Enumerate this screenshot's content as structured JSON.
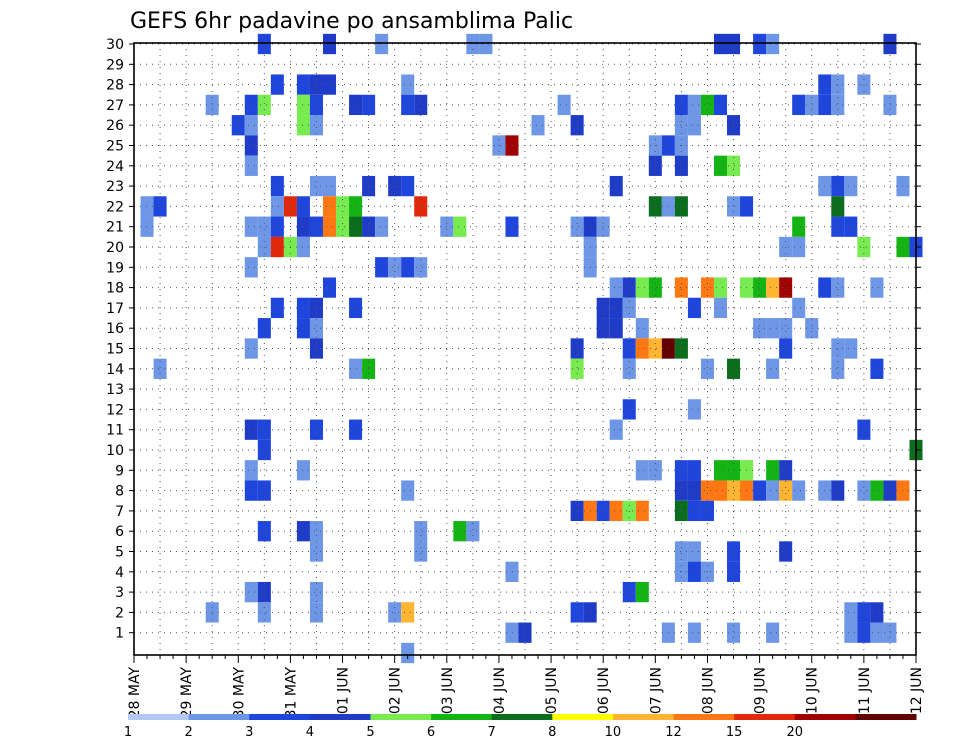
{
  "chart_data": {
    "type": "heatmap",
    "title": "GEFS 6hr padavine po ansamblima Palic",
    "xlabel": "",
    "ylabel": "",
    "y_ticks": [
      "1",
      "2",
      "3",
      "4",
      "5",
      "6",
      "7",
      "8",
      "9",
      "10",
      "11",
      "12",
      "13",
      "14",
      "15",
      "16",
      "17",
      "18",
      "19",
      "20",
      "21",
      "22",
      "23",
      "24",
      "25",
      "26",
      "27",
      "28",
      "29",
      "30"
    ],
    "ylim": [
      1,
      30
    ],
    "x_ticks": [
      "28 MAY",
      "29 MAY",
      "30 MAY",
      "31 MAY",
      "01 JUN",
      "02 JUN",
      "03 JUN",
      "04 JUN",
      "05 JUN",
      "06 JUN",
      "07 JUN",
      "08 JUN",
      "09 JUN",
      "10 JUN",
      "11 JUN",
      "12 JUN"
    ],
    "x_time_steps": 60,
    "steps_per_day": 4,
    "grid": true,
    "legend": {
      "placement": "bottom",
      "labels": [
        "1",
        "2",
        "3",
        "4",
        "5",
        "6",
        "7",
        "8",
        "10",
        "12",
        "15",
        "20"
      ],
      "colors": [
        "#b4c8f5",
        "#6e96e6",
        "#1e46dc",
        "#1e3cc8",
        "#78eb50",
        "#14b414",
        "#0a6e1e",
        "#ffff00",
        "#ffb432",
        "#ff7814",
        "#e1280a",
        "#a00000",
        "#640000"
      ]
    },
    "cells_note_units": "values in mm per 6h",
    "cells": [
      [
        30,
        10,
        2.4
      ],
      [
        30,
        15,
        3.4
      ],
      [
        30,
        19,
        1.6
      ],
      [
        30,
        26,
        1.2
      ],
      [
        30,
        27,
        1.2
      ],
      [
        30,
        45,
        3.3
      ],
      [
        30,
        46,
        3.3
      ],
      [
        30,
        48,
        2.2
      ],
      [
        30,
        49,
        1.4
      ],
      [
        30,
        58,
        3.4
      ],
      [
        28,
        11,
        2.5
      ],
      [
        28,
        13,
        2.3
      ],
      [
        28,
        14,
        3.3
      ],
      [
        28,
        15,
        3.3
      ],
      [
        28,
        21,
        1.4
      ],
      [
        28,
        53,
        2.3
      ],
      [
        28,
        54,
        1.5
      ],
      [
        28,
        56,
        1.4
      ],
      [
        27,
        6,
        1.2
      ],
      [
        27,
        9,
        2.3
      ],
      [
        27,
        10,
        4.5
      ],
      [
        27,
        13,
        4.8
      ],
      [
        27,
        14,
        2.4
      ],
      [
        27,
        17,
        3.4
      ],
      [
        27,
        18,
        2.3
      ],
      [
        27,
        21,
        2.4
      ],
      [
        27,
        22,
        3.3
      ],
      [
        27,
        33,
        1.3
      ],
      [
        27,
        42,
        2.3
      ],
      [
        27,
        43,
        1.4
      ],
      [
        27,
        44,
        5.4
      ],
      [
        27,
        45,
        2.4
      ],
      [
        27,
        51,
        2.3
      ],
      [
        27,
        52,
        1.4
      ],
      [
        27,
        53,
        2.3
      ],
      [
        27,
        54,
        1.6
      ],
      [
        27,
        58,
        1.3
      ],
      [
        26,
        8,
        2.4
      ],
      [
        26,
        9,
        1.4
      ],
      [
        26,
        13,
        4.6
      ],
      [
        26,
        14,
        1.6
      ],
      [
        26,
        31,
        1.3
      ],
      [
        26,
        34,
        3.3
      ],
      [
        26,
        42,
        1.4
      ],
      [
        26,
        43,
        1.4
      ],
      [
        26,
        46,
        3.4
      ],
      [
        25,
        9,
        3.4
      ],
      [
        25,
        28,
        1.5
      ],
      [
        25,
        29,
        15.5
      ],
      [
        25,
        40,
        1.4
      ],
      [
        25,
        41,
        2.4
      ],
      [
        25,
        42,
        1.3
      ],
      [
        24,
        9,
        1.4
      ],
      [
        24,
        40,
        3.3
      ],
      [
        24,
        42,
        3.3
      ],
      [
        24,
        45,
        5.6
      ],
      [
        24,
        46,
        4.8
      ],
      [
        23,
        11,
        2.3
      ],
      [
        23,
        14,
        1.4
      ],
      [
        23,
        15,
        1.4
      ],
      [
        23,
        18,
        3.3
      ],
      [
        23,
        20,
        3.4
      ],
      [
        23,
        21,
        2.4
      ],
      [
        23,
        37,
        3.4
      ],
      [
        23,
        53,
        1.4
      ],
      [
        23,
        54,
        2.4
      ],
      [
        23,
        55,
        1.3
      ],
      [
        23,
        59,
        1.3
      ],
      [
        22,
        1,
        1.4
      ],
      [
        22,
        2,
        2.3
      ],
      [
        22,
        11,
        1.3
      ],
      [
        22,
        12,
        12.5
      ],
      [
        22,
        13,
        2.4
      ],
      [
        22,
        15,
        10.5
      ],
      [
        22,
        16,
        4.7
      ],
      [
        22,
        17,
        5.3
      ],
      [
        22,
        22,
        12.3
      ],
      [
        22,
        40,
        6.5
      ],
      [
        22,
        41,
        1.5
      ],
      [
        22,
        42,
        6.5
      ],
      [
        22,
        46,
        1.4
      ],
      [
        22,
        47,
        2.4
      ],
      [
        22,
        54,
        6.5
      ],
      [
        21,
        1,
        1.4
      ],
      [
        21,
        9,
        1.4
      ],
      [
        21,
        10,
        1.4
      ],
      [
        21,
        11,
        2.4
      ],
      [
        21,
        13,
        3.3
      ],
      [
        21,
        14,
        2.4
      ],
      [
        21,
        15,
        10.6
      ],
      [
        21,
        16,
        4.8
      ],
      [
        21,
        17,
        6.2
      ],
      [
        21,
        18,
        3.4
      ],
      [
        21,
        19,
        1.4
      ],
      [
        21,
        24,
        1.4
      ],
      [
        21,
        25,
        4.6
      ],
      [
        21,
        29,
        2.3
      ],
      [
        21,
        34,
        1.3
      ],
      [
        21,
        35,
        3.4
      ],
      [
        21,
        36,
        1.4
      ],
      [
        21,
        51,
        5.3
      ],
      [
        21,
        54,
        2.3
      ],
      [
        21,
        55,
        2.4
      ],
      [
        20,
        10,
        1.4
      ],
      [
        20,
        11,
        12.5
      ],
      [
        20,
        12,
        4.6
      ],
      [
        20,
        13,
        1.4
      ],
      [
        20,
        35,
        1.4
      ],
      [
        20,
        50,
        1.4
      ],
      [
        20,
        51,
        1.4
      ],
      [
        20,
        56,
        4.8
      ],
      [
        20,
        59,
        5.6
      ],
      [
        20,
        60,
        2.4
      ],
      [
        19,
        9,
        1.4
      ],
      [
        19,
        19,
        2.3
      ],
      [
        19,
        20,
        1.4
      ],
      [
        19,
        21,
        2.4
      ],
      [
        19,
        22,
        1.4
      ],
      [
        19,
        35,
        1.3
      ],
      [
        18,
        15,
        2.4
      ],
      [
        18,
        37,
        1.4
      ],
      [
        18,
        38,
        3.4
      ],
      [
        18,
        39,
        4.6
      ],
      [
        18,
        40,
        5.6
      ],
      [
        18,
        42,
        10.5
      ],
      [
        18,
        44,
        10.5
      ],
      [
        18,
        45,
        4.8
      ],
      [
        18,
        47,
        4.6
      ],
      [
        18,
        48,
        5.6
      ],
      [
        18,
        49,
        8.5
      ],
      [
        18,
        50,
        17.5
      ],
      [
        18,
        53,
        2.4
      ],
      [
        18,
        54,
        1.4
      ],
      [
        18,
        57,
        1.4
      ],
      [
        17,
        11,
        2.4
      ],
      [
        17,
        13,
        2.4
      ],
      [
        17,
        14,
        3.4
      ],
      [
        17,
        17,
        2.4
      ],
      [
        17,
        36,
        3.4
      ],
      [
        17,
        37,
        3.4
      ],
      [
        17,
        38,
        1.4
      ],
      [
        17,
        43,
        2.4
      ],
      [
        17,
        45,
        1.4
      ],
      [
        17,
        51,
        1.4
      ],
      [
        16,
        10,
        2.4
      ],
      [
        16,
        13,
        2.4
      ],
      [
        16,
        14,
        1.4
      ],
      [
        16,
        36,
        3.3
      ],
      [
        16,
        37,
        3.4
      ],
      [
        16,
        39,
        1.4
      ],
      [
        16,
        48,
        1.4
      ],
      [
        16,
        49,
        1.4
      ],
      [
        16,
        50,
        1.4
      ],
      [
        16,
        52,
        1.5
      ],
      [
        15,
        9,
        1.4
      ],
      [
        15,
        14,
        3.4
      ],
      [
        15,
        34,
        3.4
      ],
      [
        15,
        38,
        2.3
      ],
      [
        15,
        39,
        10.5
      ],
      [
        15,
        40,
        8.4
      ],
      [
        15,
        41,
        25
      ],
      [
        15,
        42,
        6.5
      ],
      [
        15,
        50,
        2.4
      ],
      [
        15,
        54,
        1.4
      ],
      [
        15,
        55,
        1.4
      ],
      [
        14,
        2,
        1.3
      ],
      [
        14,
        17,
        1.4
      ],
      [
        14,
        18,
        5.5
      ],
      [
        14,
        34,
        4.6
      ],
      [
        14,
        38,
        1.4
      ],
      [
        14,
        44,
        1.4
      ],
      [
        14,
        46,
        6.5
      ],
      [
        14,
        49,
        1.4
      ],
      [
        14,
        54,
        1.4
      ],
      [
        14,
        57,
        2.4
      ],
      [
        12,
        38,
        2.4
      ],
      [
        12,
        43,
        1.4
      ],
      [
        11,
        9,
        3.4
      ],
      [
        11,
        10,
        2.3
      ],
      [
        11,
        14,
        2.4
      ],
      [
        11,
        17,
        2.4
      ],
      [
        11,
        37,
        1.4
      ],
      [
        11,
        56,
        2.3
      ],
      [
        10,
        10,
        2.4
      ],
      [
        10,
        60,
        6.5
      ],
      [
        9,
        9,
        1.4
      ],
      [
        9,
        13,
        1.4
      ],
      [
        9,
        39,
        1.4
      ],
      [
        9,
        40,
        1.4
      ],
      [
        9,
        42,
        2.4
      ],
      [
        9,
        43,
        2.4
      ],
      [
        9,
        45,
        5.4
      ],
      [
        9,
        46,
        5.6
      ],
      [
        9,
        47,
        4.8
      ],
      [
        9,
        49,
        5.5
      ],
      [
        9,
        50,
        3.4
      ],
      [
        8,
        9,
        2.4
      ],
      [
        8,
        10,
        2.4
      ],
      [
        8,
        21,
        1.4
      ],
      [
        8,
        42,
        3.4
      ],
      [
        8,
        43,
        3.3
      ],
      [
        8,
        44,
        10.5
      ],
      [
        8,
        45,
        10.4
      ],
      [
        8,
        46,
        8.5
      ],
      [
        8,
        47,
        10.5
      ],
      [
        8,
        48,
        2.4
      ],
      [
        8,
        49,
        1.4
      ],
      [
        8,
        50,
        8.4
      ],
      [
        8,
        51,
        1.4
      ],
      [
        8,
        53,
        1.4
      ],
      [
        8,
        54,
        3.4
      ],
      [
        8,
        56,
        1.4
      ],
      [
        8,
        57,
        5.6
      ],
      [
        8,
        58,
        3.4
      ],
      [
        8,
        59,
        10.5
      ],
      [
        7,
        34,
        3.4
      ],
      [
        7,
        35,
        10.5
      ],
      [
        7,
        36,
        2.4
      ],
      [
        7,
        37,
        10.5
      ],
      [
        7,
        38,
        4.7
      ],
      [
        7,
        39,
        10.5
      ],
      [
        7,
        42,
        6.5
      ],
      [
        7,
        43,
        2.4
      ],
      [
        7,
        44,
        2.4
      ],
      [
        6,
        10,
        2.4
      ],
      [
        6,
        13,
        3.4
      ],
      [
        6,
        14,
        1.4
      ],
      [
        6,
        22,
        1.4
      ],
      [
        6,
        25,
        5.3
      ],
      [
        6,
        26,
        1.4
      ],
      [
        5,
        14,
        1.4
      ],
      [
        5,
        22,
        1.4
      ],
      [
        5,
        42,
        1.4
      ],
      [
        5,
        43,
        1.4
      ],
      [
        5,
        46,
        2.4
      ],
      [
        5,
        50,
        3.4
      ],
      [
        4,
        29,
        1.4
      ],
      [
        4,
        42,
        1.4
      ],
      [
        4,
        43,
        2.4
      ],
      [
        4,
        44,
        1.4
      ],
      [
        4,
        46,
        2.4
      ],
      [
        3,
        9,
        1.4
      ],
      [
        3,
        10,
        3.4
      ],
      [
        3,
        14,
        1.4
      ],
      [
        3,
        38,
        2.4
      ],
      [
        3,
        39,
        5.6
      ],
      [
        2,
        6,
        1.4
      ],
      [
        2,
        10,
        1.4
      ],
      [
        2,
        14,
        1.4
      ],
      [
        2,
        20,
        1.4
      ],
      [
        2,
        21,
        8.5
      ],
      [
        2,
        34,
        2.4
      ],
      [
        2,
        35,
        3.4
      ],
      [
        2,
        55,
        1.4
      ],
      [
        2,
        56,
        2.4
      ],
      [
        2,
        57,
        3.4
      ],
      [
        1,
        29,
        1.4
      ],
      [
        1,
        30,
        3.4
      ],
      [
        1,
        41,
        1.4
      ],
      [
        1,
        43,
        1.4
      ],
      [
        1,
        46,
        1.4
      ],
      [
        1,
        49,
        1.4
      ],
      [
        1,
        55,
        1.4
      ],
      [
        1,
        56,
        2.4
      ],
      [
        1,
        57,
        1.4
      ],
      [
        1,
        58,
        1.4
      ],
      [
        0,
        21,
        1.4
      ]
    ]
  }
}
